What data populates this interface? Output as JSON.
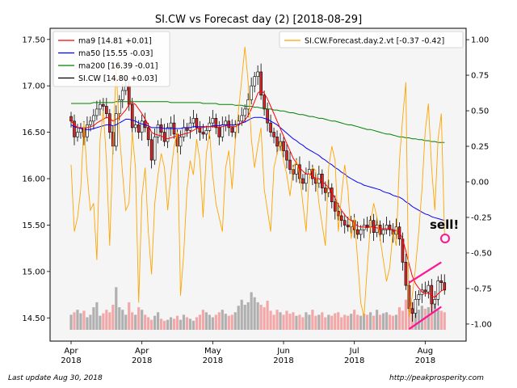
{
  "chart_data": {
    "type": "candlestick",
    "title": "SI.CW vs Forecast day (2)  [2018-08-29]",
    "left_axis": {
      "ylim": [
        14.25,
        17.62
      ],
      "ticks": [
        "17.50",
        "17.00",
        "16.50",
        "16.00",
        "15.50",
        "15.00",
        "14.50"
      ],
      "tick_values": [
        17.5,
        17.0,
        16.5,
        16.0,
        15.5,
        15.0,
        14.5
      ]
    },
    "right_axis": {
      "ylim": [
        -1.12,
        1.08
      ],
      "ticks": [
        "1.00",
        "0.75",
        "0.50",
        "0.25",
        "0.00",
        "-0.25",
        "-0.50",
        "-0.75",
        "-1.00"
      ],
      "tick_values": [
        1.0,
        0.75,
        0.5,
        0.25,
        0.0,
        -0.25,
        -0.5,
        -0.75,
        -1.0
      ]
    },
    "x_ticks": [
      {
        "line1": "Apr",
        "line2": "2018",
        "day": 0
      },
      {
        "line1": "Apr",
        "line2": "2018",
        "day": 22
      },
      {
        "line1": "May",
        "line2": "2018",
        "day": 44
      },
      {
        "line1": "Jun",
        "line2": "2018",
        "day": 66
      },
      {
        "line1": "Jul",
        "line2": "2018",
        "day": 88
      },
      {
        "line1": "Aug",
        "line2": "2018",
        "day": 110
      }
    ],
    "legend_left": {
      "placement": "top-left",
      "entries": [
        {
          "label": "ma9 [14.81 +0.01]",
          "color": "#ff0000"
        },
        {
          "label": "ma50 [15.55 -0.03]",
          "color": "#0000ff"
        },
        {
          "label": "ma200 [16.39 -0.01]",
          "color": "#008000"
        },
        {
          "label": "SI.CW [14.80 +0.03]",
          "color": "#000000"
        }
      ]
    },
    "legend_right": {
      "placement": "top-right",
      "entries": [
        {
          "label": "SI.CW.Forecast.day.2.vt [-0.37 -0.42]",
          "color": "#ffa500"
        }
      ]
    },
    "close": [
      16.62,
      16.45,
      16.5,
      16.55,
      16.45,
      16.58,
      16.62,
      16.68,
      16.75,
      16.8,
      16.78,
      16.7,
      16.5,
      16.35,
      16.7,
      16.85,
      16.95,
      17.0,
      16.8,
      16.55,
      16.58,
      16.5,
      16.62,
      16.55,
      16.42,
      16.2,
      16.45,
      16.58,
      16.5,
      16.4,
      16.55,
      16.6,
      16.48,
      16.35,
      16.45,
      16.55,
      16.52,
      16.6,
      16.65,
      16.55,
      16.5,
      16.48,
      16.52,
      16.6,
      16.65,
      16.55,
      16.45,
      16.58,
      16.62,
      16.55,
      16.5,
      16.58,
      16.62,
      16.68,
      16.75,
      16.85,
      17.0,
      17.1,
      17.15,
      16.9,
      16.75,
      16.6,
      16.5,
      16.45,
      16.35,
      16.4,
      16.3,
      16.2,
      16.1,
      16.05,
      16.15,
      16.0,
      15.95,
      16.05,
      16.1,
      16.0,
      15.95,
      16.05,
      15.9,
      15.85,
      15.9,
      15.75,
      15.65,
      15.6,
      15.55,
      15.5,
      15.48,
      15.55,
      15.45,
      15.4,
      15.45,
      15.5,
      15.48,
      15.55,
      15.42,
      15.5,
      15.4,
      15.45,
      15.5,
      15.45,
      15.4,
      15.48,
      15.35,
      15.1,
      14.85,
      14.6,
      14.55,
      14.7,
      14.75,
      14.8,
      14.78,
      14.85,
      14.65,
      14.7,
      14.9,
      14.88,
      14.8
    ],
    "forecast": [
      0.12,
      -0.35,
      -0.25,
      -0.05,
      0.42,
      0.05,
      -0.2,
      -0.15,
      -0.55,
      0.3,
      0.5,
      0.15,
      -0.45,
      0.25,
      0.8,
      0.35,
      0.05,
      -0.2,
      -0.15,
      0.35,
      0.1,
      -0.85,
      -0.1,
      0.1,
      -0.35,
      -0.65,
      -0.15,
      0.05,
      0.2,
      0.1,
      -0.2,
      0.05,
      0.25,
      0.35,
      -0.8,
      -0.5,
      -0.05,
      0.15,
      0.05,
      0.3,
      0.15,
      -0.25,
      0.2,
      0.35,
      0.05,
      -0.15,
      -0.25,
      -0.35,
      0.1,
      0.22,
      -0.05,
      0.28,
      0.5,
      0.72,
      0.95,
      0.7,
      0.3,
      0.1,
      0.25,
      0.38,
      -0.05,
      -0.2,
      -0.35,
      0.1,
      0.2,
      0.28,
      0.15,
      0.05,
      -0.1,
      0.1,
      0.15,
      0.05,
      -0.15,
      -0.35,
      0.05,
      0.1,
      0.08,
      -0.15,
      -0.3,
      -0.45,
      0.1,
      0.25,
      0.15,
      -0.35,
      -0.1,
      0.12,
      -0.05,
      -0.4,
      -0.25,
      -0.55,
      -0.85,
      -0.95,
      -0.6,
      -0.3,
      -0.15,
      -0.25,
      -0.4,
      -0.55,
      -0.7,
      -0.6,
      -0.35,
      -0.45,
      0.15,
      0.45,
      0.7,
      -0.95,
      -0.8,
      -0.6,
      -0.35,
      -0.05,
      0.35,
      0.55,
      0.1,
      -0.2,
      0.3,
      0.48,
      -0.37
    ],
    "ma9": [
      16.62,
      16.58,
      16.55,
      16.55,
      16.54,
      16.55,
      16.56,
      16.57,
      16.6,
      16.62,
      16.64,
      16.66,
      16.65,
      16.62,
      16.64,
      16.66,
      16.7,
      16.74,
      16.8,
      16.82,
      16.8,
      16.75,
      16.7,
      16.64,
      16.58,
      16.5,
      16.48,
      16.47,
      16.46,
      16.44,
      16.43,
      16.44,
      16.45,
      16.46,
      16.47,
      16.48,
      16.49,
      16.5,
      16.52,
      16.54,
      16.55,
      16.55,
      16.56,
      16.56,
      16.56,
      16.56,
      16.55,
      16.56,
      16.57,
      16.57,
      16.56,
      16.56,
      16.58,
      16.6,
      16.63,
      16.68,
      16.75,
      16.83,
      16.92,
      16.95,
      16.92,
      16.86,
      16.78,
      16.7,
      16.62,
      16.54,
      16.46,
      16.38,
      16.3,
      16.22,
      16.17,
      16.12,
      16.08,
      16.05,
      16.05,
      16.03,
      16.0,
      16.0,
      15.97,
      15.94,
      15.9,
      15.85,
      15.79,
      15.72,
      15.66,
      15.61,
      15.57,
      15.55,
      15.52,
      15.49,
      15.48,
      15.48,
      15.47,
      15.48,
      15.48,
      15.47,
      15.46,
      15.46,
      15.46,
      15.46,
      15.45,
      15.44,
      15.43,
      15.35,
      15.22,
      15.08,
      14.95,
      14.87,
      14.82,
      14.78,
      14.76,
      14.77,
      14.74,
      14.72,
      14.76,
      14.79,
      14.81
    ],
    "ma50": [
      16.58,
      16.56,
      16.55,
      16.54,
      16.53,
      16.53,
      16.53,
      16.54,
      16.55,
      16.56,
      16.57,
      16.58,
      16.58,
      16.57,
      16.58,
      16.6,
      16.62,
      16.64,
      16.64,
      16.63,
      16.62,
      16.6,
      16.59,
      16.58,
      16.57,
      16.55,
      16.55,
      16.55,
      16.55,
      16.54,
      16.54,
      16.54,
      16.54,
      16.54,
      16.54,
      16.55,
      16.55,
      16.55,
      16.56,
      16.56,
      16.56,
      16.56,
      16.56,
      16.56,
      16.57,
      16.57,
      16.57,
      16.58,
      16.58,
      16.58,
      16.58,
      16.58,
      16.59,
      16.6,
      16.61,
      16.63,
      16.65,
      16.66,
      16.66,
      16.66,
      16.65,
      16.64,
      16.62,
      16.6,
      16.58,
      16.55,
      16.52,
      16.49,
      16.46,
      16.43,
      16.41,
      16.38,
      16.36,
      16.33,
      16.31,
      16.29,
      16.27,
      16.25,
      16.22,
      16.2,
      16.17,
      16.15,
      16.12,
      16.1,
      16.07,
      16.05,
      16.02,
      16.0,
      15.98,
      15.96,
      15.95,
      15.93,
      15.92,
      15.91,
      15.9,
      15.89,
      15.88,
      15.86,
      15.85,
      15.84,
      15.82,
      15.81,
      15.8,
      15.78,
      15.75,
      15.73,
      15.7,
      15.68,
      15.66,
      15.64,
      15.62,
      15.61,
      15.59,
      15.58,
      15.57,
      15.56,
      15.55
    ],
    "ma200": [
      16.81,
      16.81,
      16.81,
      16.81,
      16.81,
      16.81,
      16.81,
      16.82,
      16.82,
      16.82,
      16.82,
      16.82,
      16.82,
      16.82,
      16.83,
      16.83,
      16.83,
      16.83,
      16.83,
      16.83,
      16.83,
      16.83,
      16.83,
      16.83,
      16.83,
      16.83,
      16.83,
      16.83,
      16.83,
      16.83,
      16.83,
      16.82,
      16.82,
      16.82,
      16.82,
      16.82,
      16.82,
      16.82,
      16.82,
      16.82,
      16.82,
      16.81,
      16.81,
      16.81,
      16.81,
      16.81,
      16.8,
      16.8,
      16.8,
      16.8,
      16.8,
      16.79,
      16.79,
      16.79,
      16.78,
      16.78,
      16.78,
      16.77,
      16.77,
      16.76,
      16.76,
      16.75,
      16.75,
      16.74,
      16.74,
      16.73,
      16.73,
      16.72,
      16.71,
      16.71,
      16.7,
      16.69,
      16.69,
      16.68,
      16.67,
      16.67,
      16.66,
      16.65,
      16.65,
      16.64,
      16.63,
      16.62,
      16.62,
      16.61,
      16.6,
      16.59,
      16.58,
      16.58,
      16.57,
      16.56,
      16.55,
      16.54,
      16.53,
      16.53,
      16.52,
      16.51,
      16.5,
      16.49,
      16.48,
      16.48,
      16.47,
      16.46,
      16.45,
      16.45,
      16.44,
      16.44,
      16.43,
      16.43,
      16.42,
      16.42,
      16.41,
      16.41,
      16.4,
      16.4,
      16.39,
      16.39,
      16.39
    ],
    "volume": [
      0.3,
      0.35,
      0.4,
      0.33,
      0.38,
      0.25,
      0.3,
      0.45,
      0.55,
      0.28,
      0.33,
      0.4,
      0.35,
      0.5,
      0.85,
      0.45,
      0.4,
      0.3,
      0.55,
      0.35,
      0.3,
      0.45,
      0.4,
      0.3,
      0.25,
      0.2,
      0.28,
      0.35,
      0.22,
      0.18,
      0.2,
      0.25,
      0.22,
      0.28,
      0.2,
      0.3,
      0.25,
      0.22,
      0.18,
      0.25,
      0.3,
      0.4,
      0.35,
      0.3,
      0.25,
      0.3,
      0.35,
      0.4,
      0.32,
      0.28,
      0.3,
      0.35,
      0.48,
      0.6,
      0.5,
      0.55,
      0.75,
      0.65,
      0.55,
      0.5,
      0.45,
      0.58,
      0.38,
      0.3,
      0.4,
      0.35,
      0.3,
      0.38,
      0.32,
      0.35,
      0.28,
      0.3,
      0.25,
      0.35,
      0.3,
      0.4,
      0.28,
      0.3,
      0.35,
      0.25,
      0.3,
      0.28,
      0.33,
      0.35,
      0.25,
      0.3,
      0.28,
      0.32,
      0.4,
      0.3,
      0.28,
      0.32,
      0.3,
      0.35,
      0.28,
      0.4,
      0.3,
      0.33,
      0.35,
      0.3,
      0.28,
      0.3,
      0.45,
      0.38,
      0.6,
      0.85,
      0.55,
      0.45,
      0.4,
      0.48,
      0.42,
      0.45,
      0.5,
      0.55,
      0.4,
      0.38,
      0.35
    ],
    "annotations": {
      "sell_text": "sell!",
      "sell_color": "#ff1493",
      "channel_upper": [
        [
          105,
          14.88
        ],
        [
          115,
          15.1
        ]
      ],
      "channel_lower": [
        [
          105,
          14.38
        ],
        [
          115,
          14.62
        ]
      ]
    }
  },
  "footer": {
    "left": "Last update Aug 30, 2018",
    "right": "http://peakprosperity.com"
  }
}
